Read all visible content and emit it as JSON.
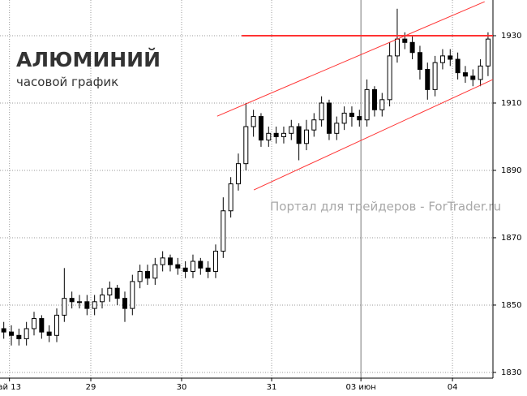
{
  "chart_data": {
    "type": "candlestick",
    "title": "АЛЮМИНИЙ",
    "subtitle": "часовой график",
    "annotation": "Портал для трейдеров - ForTrader.ru",
    "x": [
      1,
      3,
      5,
      7,
      9,
      11,
      13,
      15,
      17,
      19,
      21,
      23,
      25,
      27,
      29,
      31,
      33,
      35,
      37,
      39,
      41,
      43,
      45,
      47,
      49,
      51,
      53,
      55,
      57,
      59,
      61,
      63,
      65,
      67,
      69,
      71,
      73,
      75,
      77,
      79,
      81,
      83,
      85,
      87,
      89,
      91,
      93,
      95,
      97,
      99,
      101,
      103,
      105,
      107,
      109,
      111,
      113,
      115,
      117,
      119,
      121,
      123,
      125,
      127,
      129
    ],
    "open": [
      1843,
      1842,
      1841,
      1840,
      1843,
      1846,
      1842,
      1841,
      1847,
      1852,
      1851,
      1851,
      1849,
      1851,
      1853,
      1855,
      1852,
      1849,
      1857,
      1860,
      1858,
      1862,
      1864,
      1862,
      1861,
      1860,
      1863,
      1861,
      1860,
      1866,
      1878,
      1886,
      1892,
      1903,
      1906,
      1899,
      1901,
      1900,
      1901,
      1903,
      1898,
      1902,
      1905,
      1910,
      1901,
      1904,
      1907,
      1906,
      1905,
      1914,
      1908,
      1911,
      1924,
      1929,
      1928,
      1925,
      1920,
      1914,
      1922,
      1924,
      1923,
      1919,
      1918,
      1917,
      1921
    ],
    "close": [
      1842,
      1841,
      1840,
      1843,
      1846,
      1842,
      1841,
      1847,
      1852,
      1851,
      1851,
      1849,
      1851,
      1853,
      1855,
      1852,
      1849,
      1857,
      1860,
      1858,
      1862,
      1864,
      1862,
      1861,
      1860,
      1863,
      1861,
      1860,
      1866,
      1878,
      1886,
      1892,
      1903,
      1906,
      1899,
      1901,
      1900,
      1901,
      1903,
      1898,
      1902,
      1905,
      1910,
      1901,
      1904,
      1907,
      1906,
      1905,
      1914,
      1908,
      1911,
      1924,
      1929,
      1928,
      1925,
      1920,
      1914,
      1922,
      1924,
      1923,
      1919,
      1918,
      1917,
      1921,
      1929
    ],
    "high": [
      1845,
      1844,
      1843,
      1845,
      1848,
      1847,
      1844,
      1849,
      1861,
      1854,
      1853,
      1853,
      1853,
      1855,
      1857,
      1856,
      1854,
      1859,
      1862,
      1862,
      1864,
      1866,
      1865,
      1864,
      1863,
      1865,
      1864,
      1863,
      1868,
      1882,
      1888,
      1895,
      1910,
      1908,
      1907,
      1903,
      1903,
      1903,
      1905,
      1904,
      1905,
      1907,
      1912,
      1911,
      1906,
      1909,
      1909,
      1908,
      1917,
      1915,
      1913,
      1928,
      1938,
      1931,
      1930,
      1927,
      1922,
      1924,
      1926,
      1926,
      1925,
      1921,
      1920,
      1923,
      1931
    ],
    "low": [
      1840,
      1838,
      1838,
      1838,
      1841,
      1840,
      1839,
      1839,
      1845,
      1849,
      1849,
      1847,
      1847,
      1849,
      1851,
      1850,
      1845,
      1847,
      1855,
      1856,
      1856,
      1860,
      1860,
      1859,
      1858,
      1858,
      1859,
      1858,
      1858,
      1864,
      1876,
      1884,
      1890,
      1900,
      1897,
      1897,
      1898,
      1898,
      1899,
      1893,
      1896,
      1900,
      1903,
      1899,
      1899,
      1902,
      1903,
      1903,
      1903,
      1906,
      1906,
      1909,
      1922,
      1926,
      1923,
      1917,
      1911,
      1912,
      1920,
      1921,
      1917,
      1916,
      1915,
      1915,
      1918
    ],
    "up_color": "#ffffff",
    "down_color": "#000000",
    "outline_color": "#000000",
    "xlim": [
      0,
      130.3
    ],
    "ylim": [
      1828.3,
      1940.6
    ],
    "xticks": [
      {
        "value": 2.5,
        "label": "ай 13"
      },
      {
        "value": 24,
        "label": "29"
      },
      {
        "value": 48,
        "label": "30"
      },
      {
        "value": 71.8,
        "label": "31"
      },
      {
        "value": 95.4,
        "label": "03 июн"
      },
      {
        "value": 119.6,
        "label": "04"
      }
    ],
    "yticks": [
      1830,
      1850,
      1870,
      1890,
      1910,
      1930
    ],
    "grid": true,
    "trend_lines": [
      {
        "color": "#ff3333",
        "x": [
          57.4,
          128.1
        ],
        "y": [
          1906.1,
          1940.1
        ]
      },
      {
        "color": "#ff3333",
        "x": [
          67.1,
          130.3
        ],
        "y": [
          1884.2,
          1917
        ]
      },
      {
        "color": "#ff3333",
        "x": [
          63.9,
          130.3
        ],
        "y": [
          1930,
          1930
        ]
      }
    ]
  }
}
